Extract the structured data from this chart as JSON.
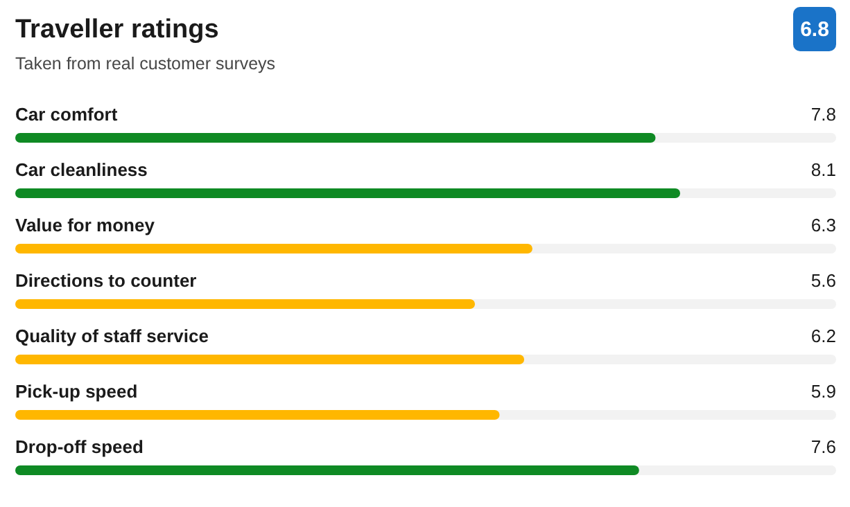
{
  "chart_data": {
    "type": "bar",
    "orientation": "horizontal",
    "title": "Traveller ratings",
    "subtitle": "Taken from real customer surveys",
    "categories": [
      "Car comfort",
      "Car cleanliness",
      "Value for money",
      "Directions to counter",
      "Quality of staff service",
      "Pick-up speed",
      "Drop-off speed"
    ],
    "values": [
      7.8,
      8.1,
      6.3,
      5.6,
      6.2,
      5.9,
      7.6
    ],
    "colors": [
      "#0f8a24",
      "#0f8a24",
      "#ffb700",
      "#ffb700",
      "#ffb700",
      "#ffb700",
      "#0f8a24"
    ],
    "xlim": [
      0,
      10
    ],
    "data_labels": true,
    "annotations": [
      "6.8"
    ]
  }
}
